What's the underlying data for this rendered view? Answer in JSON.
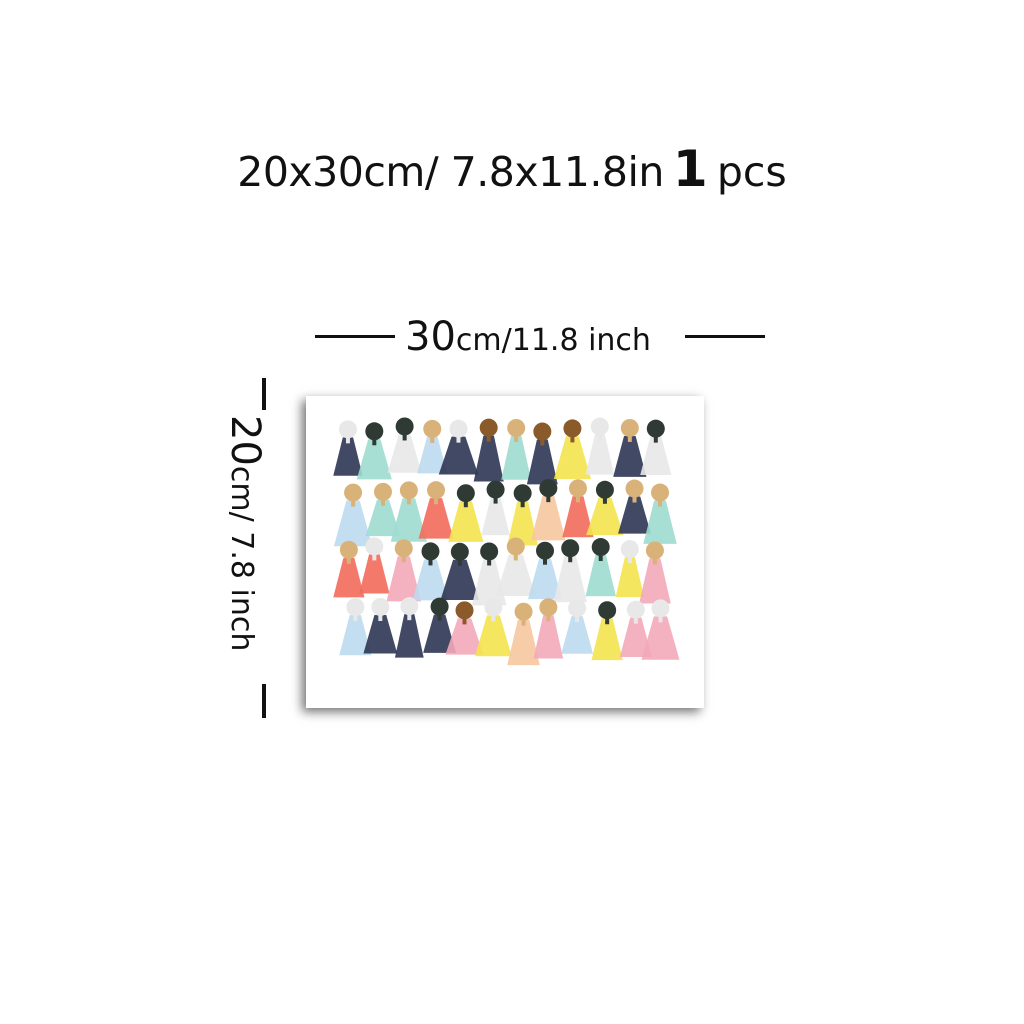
{
  "header": {
    "size_text": "20x30cm/ 7.8x11.8in",
    "quantity": "1",
    "unit": "pcs"
  },
  "width_dimension": {
    "value": "30",
    "unit": "cm/11.8 inch"
  },
  "height_dimension": {
    "value": "20",
    "unit": "cm/ 7.8 inch"
  },
  "artwork": {
    "subject": "abstract collage of stylized figures",
    "palette": [
      "#2f3a34",
      "#8a5a2b",
      "#d9b27a",
      "#f26b5b",
      "#f4e34f",
      "#9fdccf",
      "#2e3553",
      "#f3a9b8",
      "#e8e8e8"
    ]
  }
}
